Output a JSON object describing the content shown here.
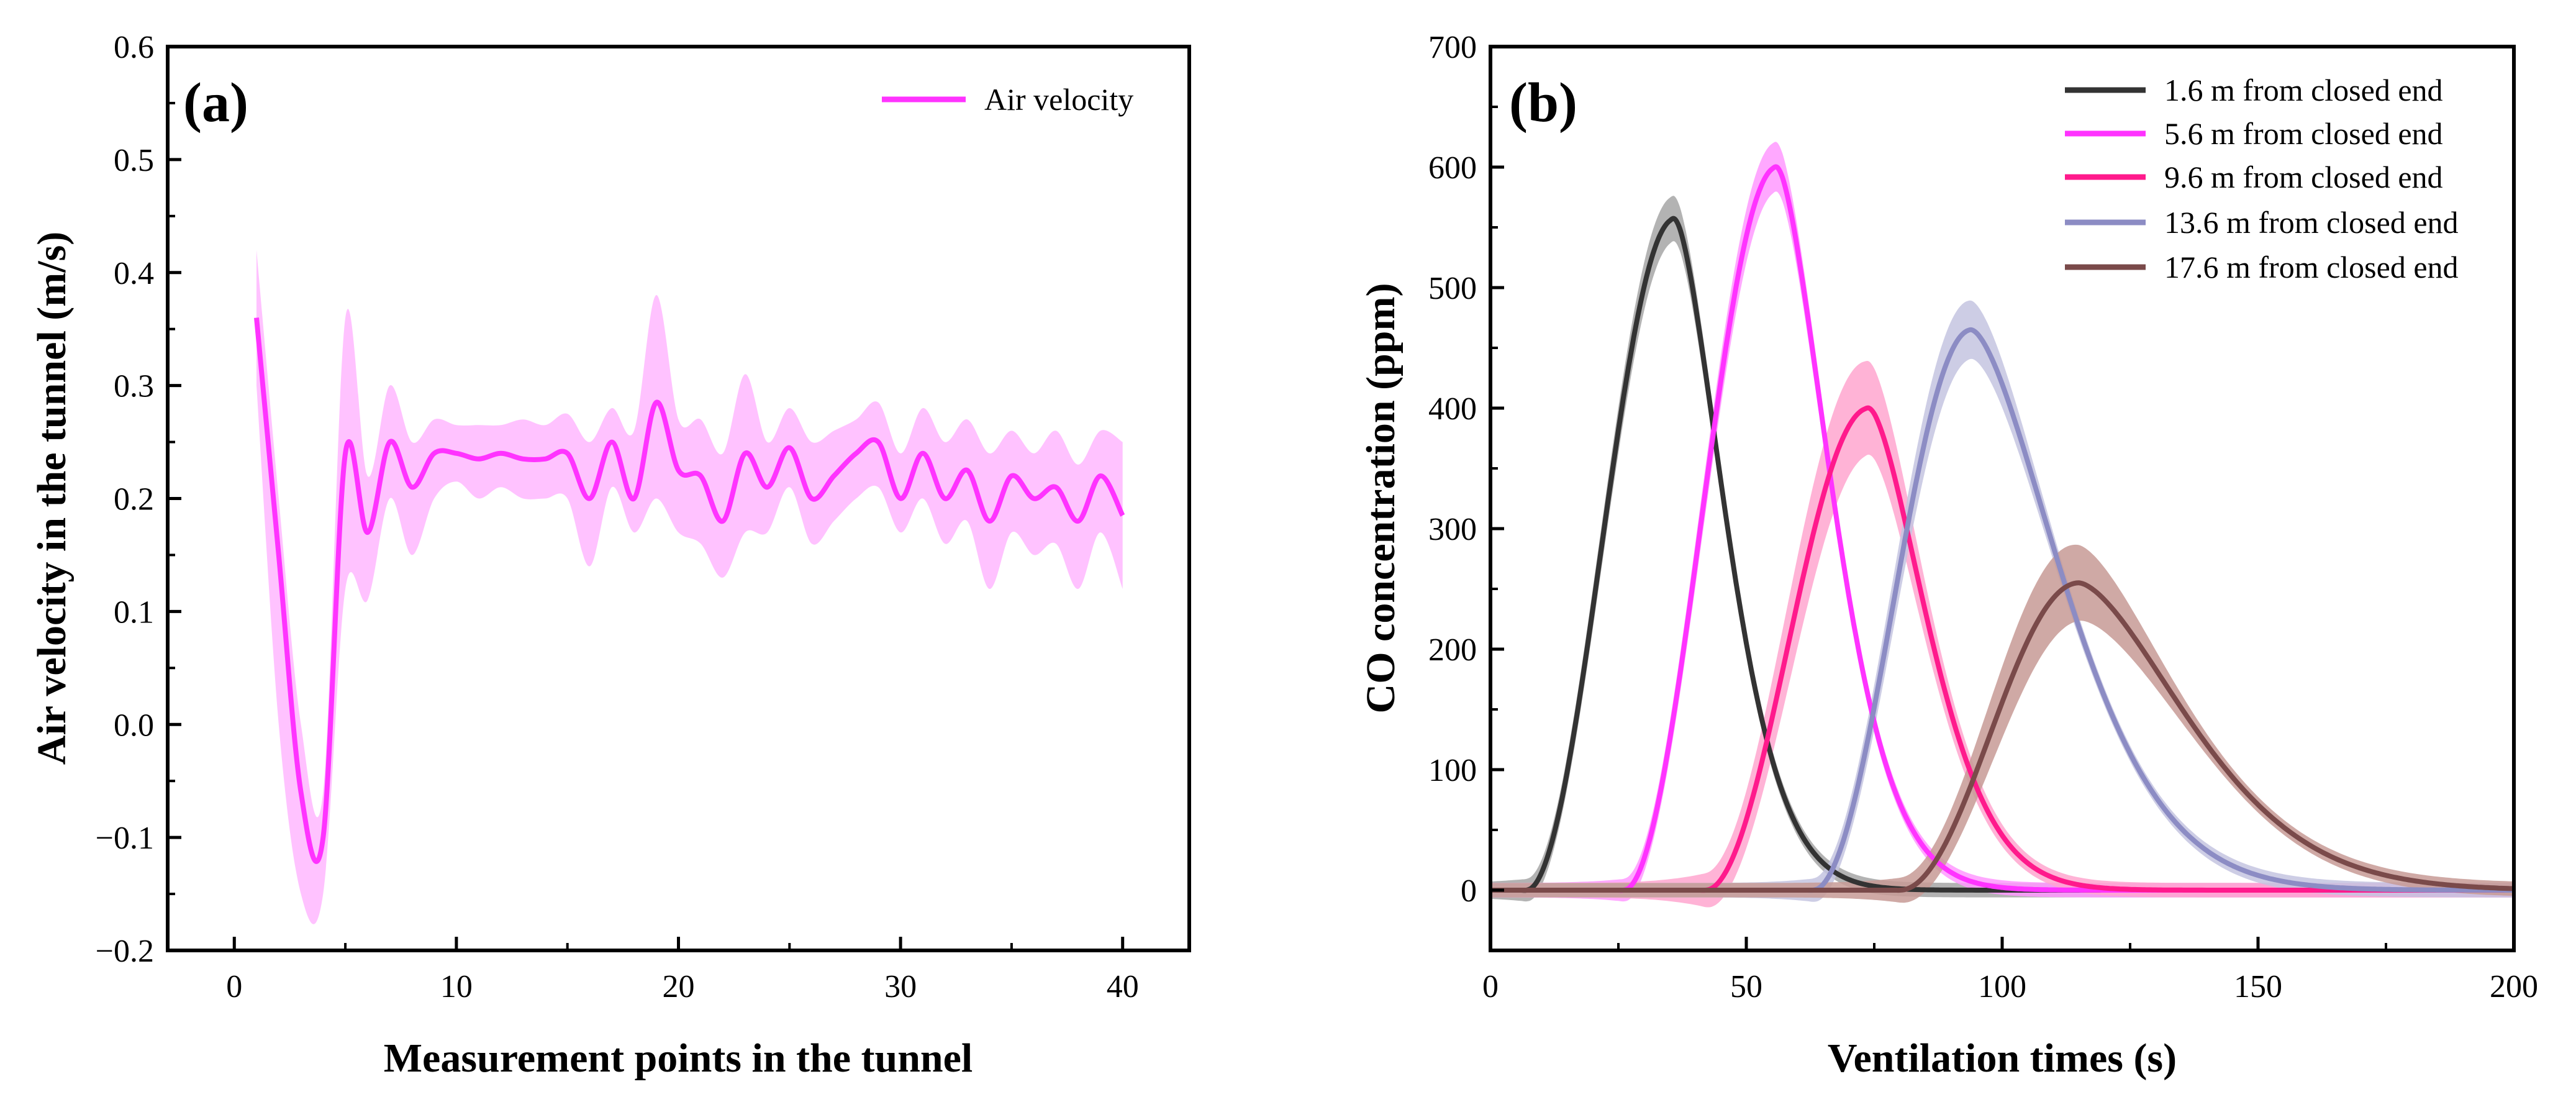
{
  "chart_data": [
    {
      "type": "line",
      "panel_label": "(a)",
      "xlabel": "Measurement points in the tunnel",
      "ylabel": "Air velocity in the tunnel (m/s)",
      "xlim": [
        -3,
        43
      ],
      "ylim": [
        -0.2,
        0.6
      ],
      "xticks": [
        0,
        10,
        20,
        30,
        40
      ],
      "xtick_labels": [
        "0",
        "10",
        "20",
        "30",
        "40"
      ],
      "yticks": [
        -0.2,
        -0.1,
        0.0,
        0.1,
        0.2,
        0.3,
        0.4,
        0.5,
        0.6
      ],
      "ytick_labels": [
        "−0.2",
        "−0.1",
        "0.0",
        "0.1",
        "0.2",
        "0.3",
        "0.4",
        "0.5",
        "0.6"
      ],
      "legend_position": "top-right",
      "series": [
        {
          "name": "Air velocity",
          "color": "#ff33ff",
          "band_color": "#ffb3ff",
          "x": [
            1,
            2,
            3,
            4,
            5,
            6,
            7,
            8,
            9,
            10,
            11,
            12,
            13,
            14,
            15,
            16,
            17,
            18,
            19,
            20,
            21,
            22,
            23,
            24,
            25,
            26,
            27,
            28,
            29,
            30,
            31,
            32,
            33,
            34,
            35,
            36,
            37,
            38,
            39,
            40
          ],
          "y": [
            0.36,
            0.15,
            -0.06,
            -0.1,
            0.24,
            0.17,
            0.25,
            0.21,
            0.24,
            0.24,
            0.235,
            0.24,
            0.235,
            0.235,
            0.24,
            0.2,
            0.25,
            0.2,
            0.285,
            0.225,
            0.22,
            0.18,
            0.24,
            0.21,
            0.245,
            0.2,
            0.22,
            0.24,
            0.25,
            0.2,
            0.24,
            0.2,
            0.225,
            0.18,
            0.22,
            0.2,
            0.21,
            0.18,
            0.22,
            0.185
          ],
          "upper": [
            0.42,
            0.2,
            0.0,
            -0.06,
            0.36,
            0.22,
            0.3,
            0.25,
            0.27,
            0.265,
            0.265,
            0.265,
            0.27,
            0.265,
            0.275,
            0.25,
            0.28,
            0.26,
            0.38,
            0.27,
            0.27,
            0.24,
            0.31,
            0.25,
            0.28,
            0.25,
            0.26,
            0.27,
            0.285,
            0.24,
            0.28,
            0.25,
            0.27,
            0.24,
            0.26,
            0.24,
            0.26,
            0.23,
            0.26,
            0.25
          ],
          "lower": [
            0.3,
            0.0,
            -0.15,
            -0.15,
            0.12,
            0.11,
            0.2,
            0.15,
            0.2,
            0.215,
            0.2,
            0.21,
            0.2,
            0.2,
            0.2,
            0.14,
            0.21,
            0.17,
            0.2,
            0.17,
            0.16,
            0.13,
            0.17,
            0.17,
            0.21,
            0.16,
            0.18,
            0.2,
            0.21,
            0.17,
            0.2,
            0.16,
            0.18,
            0.12,
            0.17,
            0.15,
            0.16,
            0.12,
            0.17,
            0.12
          ]
        }
      ]
    },
    {
      "type": "line",
      "panel_label": "(b)",
      "xlabel": "Ventilation times (s)",
      "ylabel": "CO concentration (ppm)",
      "xlim": [
        0,
        200
      ],
      "ylim": [
        -50,
        700
      ],
      "xticks": [
        0,
        50,
        100,
        150,
        200
      ],
      "xtick_labels": [
        "0",
        "50",
        "100",
        "150",
        "200"
      ],
      "yticks": [
        0,
        100,
        200,
        300,
        400,
        500,
        600,
        700
      ],
      "ytick_labels": [
        "0",
        "100",
        "200",
        "300",
        "400",
        "500",
        "600",
        "700"
      ],
      "legend_position": "top-right",
      "series": [
        {
          "name": "1.6 m from closed end",
          "color": "#333333",
          "band_color": "#a6a6a6",
          "onset": 7,
          "peak_x": 36,
          "peak_y": 557,
          "rise_w": 12,
          "decay": 14,
          "band": 14
        },
        {
          "name": "5.6 m from closed end",
          "color": "#ff33ff",
          "band_color": "#ff99ff",
          "onset": 26,
          "peak_x": 56,
          "peak_y": 600,
          "rise_w": 12,
          "decay": 15,
          "band": 16
        },
        {
          "name": "9.6 m from closed end",
          "color": "#ff1a8c",
          "band_color": "#ffa6cf",
          "onset": 42,
          "peak_x": 74,
          "peak_y": 400,
          "rise_w": 13,
          "decay": 16,
          "band": 36
        },
        {
          "name": "13.6 m from closed end",
          "color": "#8c8cc4",
          "band_color": "#c4c4e0",
          "onset": 63,
          "peak_x": 94,
          "peak_y": 465,
          "rise_w": 12,
          "decay": 25,
          "band": 20
        },
        {
          "name": "17.6 m from closed end",
          "color": "#7a4a4a",
          "band_color": "#c79a95",
          "onset": 80,
          "peak_x": 115,
          "peak_y": 255,
          "rise_w": 13,
          "decay": 30,
          "band": 28
        }
      ]
    }
  ]
}
